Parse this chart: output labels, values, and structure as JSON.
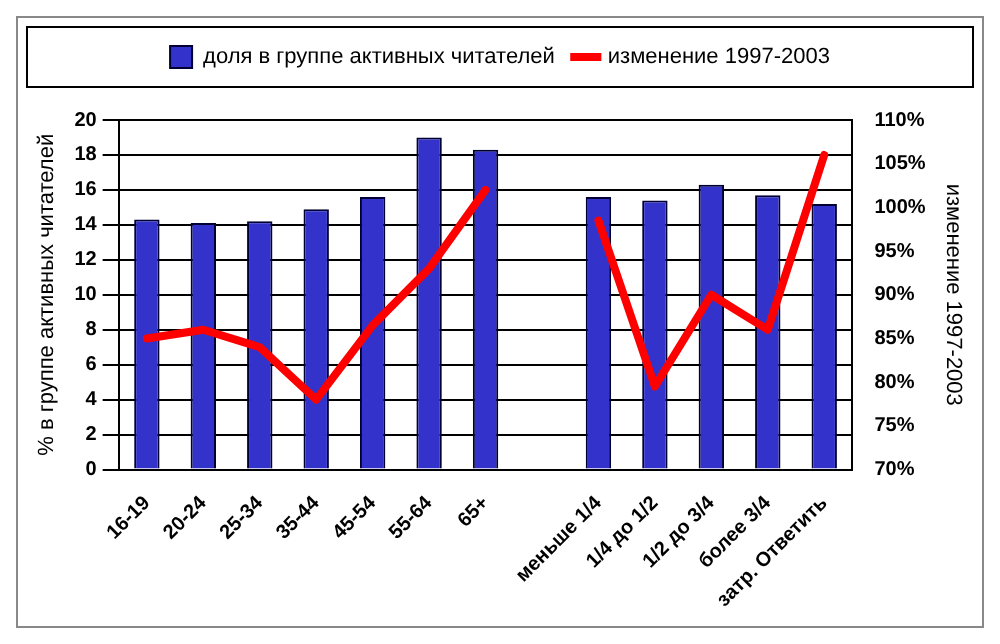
{
  "chart_data": {
    "type": "bar",
    "categories": [
      "16-19",
      "20-24",
      "25-34",
      "35-44",
      "45-54",
      "55-64",
      "65+",
      null,
      "меньше 1/4",
      "1/4 до 1/2",
      "1/2 до 3/4",
      "более 3/4",
      "затр. Ответить"
    ],
    "ylabel": "% в группе активных читателей",
    "y2label": "изменение 1997-2003",
    "series": [
      {
        "name": "доля в группе активных читателей",
        "color": "#3333cc",
        "values": [
          14.3,
          14.1,
          14.2,
          14.9,
          15.6,
          19.0,
          18.3,
          null,
          15.6,
          15.4,
          16.3,
          15.7,
          15.2
        ]
      },
      {
        "name": "изменение 1997-2003",
        "type": "line",
        "axis": "y2",
        "color": "#ff0000",
        "values": [
          85,
          86,
          84,
          78,
          86.5,
          93,
          102,
          null,
          98.5,
          79.5,
          90,
          86,
          106
        ]
      }
    ],
    "ylim": [
      0,
      20
    ],
    "yticks": [
      0,
      2,
      4,
      6,
      8,
      10,
      12,
      14,
      16,
      18,
      20
    ],
    "y2lim": [
      70,
      110
    ],
    "y2ticks": [
      {
        "value": 70,
        "label": "70%"
      },
      {
        "value": 75,
        "label": "75%"
      },
      {
        "value": 80,
        "label": "80%"
      },
      {
        "value": 85,
        "label": "85%"
      },
      {
        "value": 90,
        "label": "90%"
      },
      {
        "value": 95,
        "label": "95%"
      },
      {
        "value": 100,
        "label": "100%"
      },
      {
        "value": 105,
        "label": "105%"
      },
      {
        "value": 110,
        "label": "110%"
      }
    ],
    "grid": "y",
    "legend": "top",
    "marker": "none",
    "line_style": "solid"
  }
}
